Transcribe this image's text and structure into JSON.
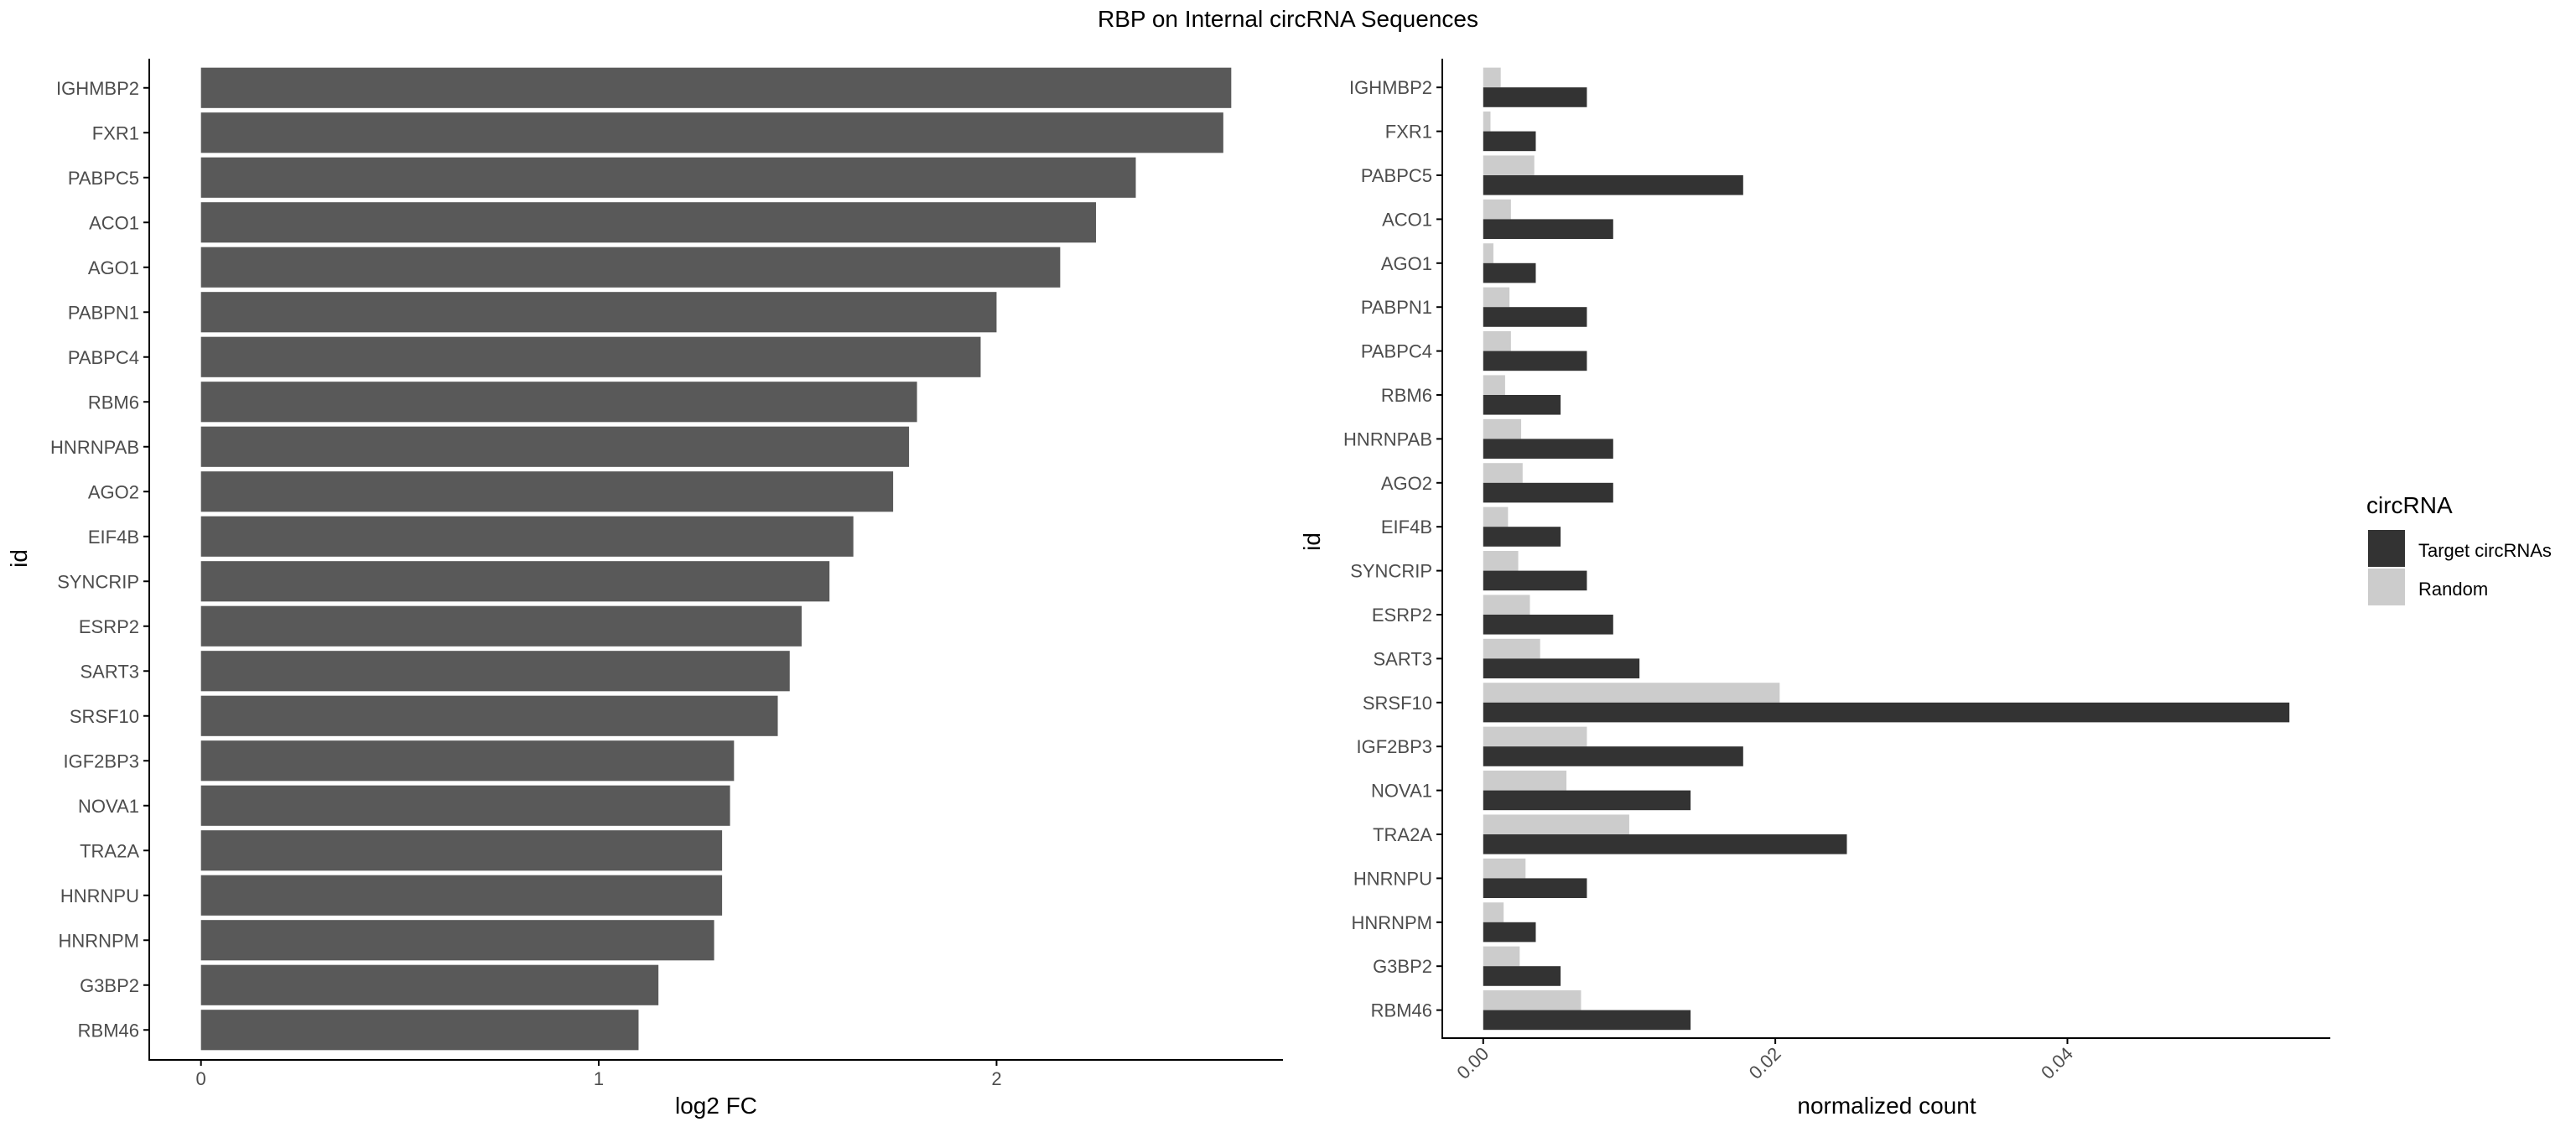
{
  "title": "RBP on Internal circRNA Sequences",
  "colors": {
    "bar": "#595959",
    "target": "#333333",
    "random": "#cccccc",
    "axis": "#000000",
    "tick_text": "#4d4d4d"
  },
  "chart_data": [
    {
      "type": "bar",
      "orientation": "horizontal",
      "categories": [
        "IGHMBP2",
        "FXR1",
        "PABPC5",
        "ACO1",
        "AGO1",
        "PABPN1",
        "PABPC4",
        "RBM6",
        "HNRNPAB",
        "AGO2",
        "EIF4B",
        "SYNCRIP",
        "ESRP2",
        "SART3",
        "SRSF10",
        "IGF2BP3",
        "NOVA1",
        "TRA2A",
        "HNRNPU",
        "HNRNPM",
        "G3BP2",
        "RBM46"
      ],
      "values": [
        2.59,
        2.57,
        2.35,
        2.25,
        2.16,
        2.0,
        1.96,
        1.8,
        1.78,
        1.74,
        1.64,
        1.58,
        1.51,
        1.48,
        1.45,
        1.34,
        1.33,
        1.31,
        1.31,
        1.29,
        1.15,
        1.1
      ],
      "xlabel": "log2 FC",
      "ylabel": "id",
      "xlim": [
        -0.13,
        2.72
      ],
      "xticks": [
        0,
        1,
        2
      ],
      "xtick_labels": [
        "0",
        "1",
        "2"
      ],
      "grid": false
    },
    {
      "type": "bar",
      "orientation": "horizontal",
      "grouped": true,
      "categories": [
        "IGHMBP2",
        "FXR1",
        "PABPC5",
        "ACO1",
        "AGO1",
        "PABPN1",
        "PABPC4",
        "RBM6",
        "HNRNPAB",
        "AGO2",
        "EIF4B",
        "SYNCRIP",
        "ESRP2",
        "SART3",
        "SRSF10",
        "IGF2BP3",
        "NOVA1",
        "TRA2A",
        "HNRNPU",
        "HNRNPM",
        "G3BP2",
        "RBM46"
      ],
      "series": [
        {
          "name": "Target circRNAs",
          "values": [
            0.0071,
            0.0036,
            0.0178,
            0.0089,
            0.0036,
            0.0071,
            0.0071,
            0.0053,
            0.0089,
            0.0089,
            0.0053,
            0.0071,
            0.0089,
            0.0107,
            0.0552,
            0.0178,
            0.0142,
            0.0249,
            0.0071,
            0.0036,
            0.0053,
            0.0142
          ]
        },
        {
          "name": "Random",
          "values": [
            0.0012,
            0.0005,
            0.0035,
            0.0019,
            0.0007,
            0.0018,
            0.0019,
            0.0015,
            0.0026,
            0.0027,
            0.0017,
            0.0024,
            0.0032,
            0.0039,
            0.0203,
            0.0071,
            0.0057,
            0.01,
            0.0029,
            0.0014,
            0.0025,
            0.0067
          ]
        }
      ],
      "xlabel": "normalized count",
      "ylabel": "id",
      "xlim": [
        -0.0028,
        0.058
      ],
      "xticks": [
        0,
        0.02,
        0.04
      ],
      "xtick_labels": [
        "0.00",
        "0.02",
        "0.04"
      ],
      "legend": {
        "title": "circRNA",
        "position": "right"
      },
      "grid": false
    }
  ]
}
